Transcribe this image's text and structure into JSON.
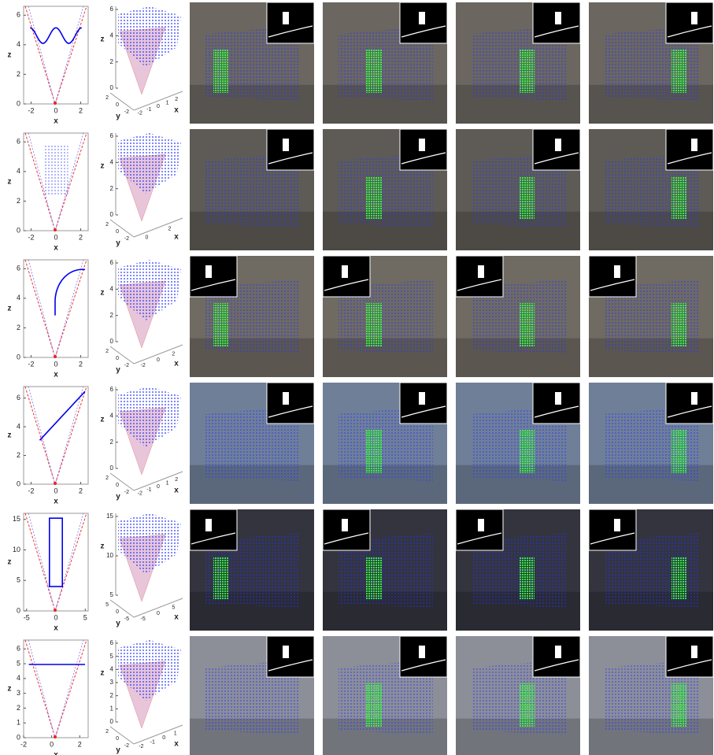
{
  "rows": [
    {
      "plot2d": {
        "xlabel": "x",
        "ylabel": "z",
        "xlim": [
          -2.6,
          2.6
        ],
        "ylim": [
          0,
          6.6
        ],
        "xticks": [
          -2,
          0,
          2
        ],
        "yticks": [
          0,
          2,
          4,
          6
        ]
      },
      "plot3d": {
        "xlabel": "x",
        "ylabel": "y",
        "zlabel": "z",
        "zticks": [
          0,
          2,
          4,
          6
        ],
        "yticks": [
          2,
          0,
          -2
        ],
        "xticks": [
          -2,
          -1,
          0,
          1,
          2
        ]
      }
    },
    {
      "plot2d": {
        "xlabel": "x",
        "ylabel": "z",
        "xlim": [
          -2.6,
          2.6
        ],
        "ylim": [
          0,
          6.6
        ],
        "xticks": [
          -2,
          0,
          2
        ],
        "yticks": [
          0,
          2,
          4,
          6
        ]
      },
      "plot3d": {
        "xlabel": "x",
        "ylabel": "y",
        "zlabel": "z",
        "zticks": [
          0,
          2,
          4,
          6
        ],
        "yticks": [
          2,
          0,
          -2
        ],
        "xticks": [
          0,
          2
        ]
      }
    },
    {
      "plot2d": {
        "xlabel": "x",
        "ylabel": "z",
        "xlim": [
          -2.6,
          2.6
        ],
        "ylim": [
          0,
          6.6
        ],
        "xticks": [
          -2,
          0,
          2
        ],
        "yticks": [
          0,
          2,
          4,
          6
        ]
      },
      "plot3d": {
        "xlabel": "x",
        "ylabel": "y",
        "zlabel": "z",
        "zticks": [
          0,
          2,
          4,
          6
        ],
        "yticks": [
          2,
          0,
          -2
        ],
        "xticks": [
          -2,
          0,
          2
        ]
      }
    },
    {
      "plot2d": {
        "xlabel": "x",
        "ylabel": "z",
        "xlim": [
          -2.6,
          2.6
        ],
        "ylim": [
          0,
          6.8
        ],
        "xticks": [
          -2,
          0,
          2
        ],
        "yticks": [
          0,
          2,
          4,
          6
        ]
      },
      "plot3d": {
        "xlabel": "x",
        "ylabel": "y",
        "zlabel": "z",
        "zticks": [
          0,
          2,
          4,
          6
        ],
        "yticks": [
          2,
          0,
          -2
        ],
        "xticks": [
          -2,
          -1,
          0,
          1,
          2
        ]
      }
    },
    {
      "plot2d": {
        "xlabel": "x",
        "ylabel": "z",
        "xlim": [
          -5.5,
          5.5
        ],
        "ylim": [
          0,
          16
        ],
        "xticks": [
          -5,
          0,
          5
        ],
        "yticks": [
          0,
          5,
          10,
          15
        ]
      },
      "plot3d": {
        "xlabel": "x",
        "ylabel": "y",
        "zlabel": "z",
        "zticks": [
          5,
          10,
          15
        ],
        "yticks": [
          5,
          0,
          -5
        ],
        "xticks": [
          -5,
          0,
          5
        ]
      }
    },
    {
      "plot2d": {
        "xlabel": "x",
        "ylabel": "z",
        "xlim": [
          -2,
          2.6
        ],
        "ylim": [
          0,
          6.6
        ],
        "xticks": [
          -2,
          0,
          2
        ],
        "yticks": [
          0,
          1,
          2,
          3,
          4,
          5,
          6
        ]
      },
      "plot3d": {
        "xlabel": "x",
        "ylabel": "y",
        "zlabel": "z",
        "zticks": [
          0,
          1,
          2,
          3,
          4,
          5,
          6
        ],
        "yticks": [
          2,
          0,
          -2
        ],
        "xticks": [
          -2,
          -1,
          0,
          1
        ]
      }
    }
  ]
}
